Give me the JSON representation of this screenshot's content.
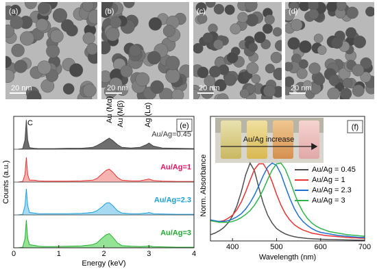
{
  "panels": [
    {
      "label": "(a)",
      "scale_bar": "20 nm"
    },
    {
      "label": "(b)",
      "scale_bar": "20 nm"
    },
    {
      "label": "(c)",
      "scale_bar": "20 nm"
    },
    {
      "label": "(d)",
      "scale_bar": "20 nm"
    }
  ],
  "chart_data": [
    {
      "type": "area",
      "panel_label": "(e)",
      "xlabel": "Energy (keV)",
      "ylabel": "Counts (a.u.)",
      "annotations": [
        "C",
        "Au (Mα)",
        "Au (Mβ)",
        "Ag (Lα)"
      ],
      "xlim": [
        0,
        4
      ],
      "xticks": [
        0,
        1,
        2,
        3,
        4
      ],
      "ylim": [
        0,
        1
      ],
      "x": [
        0.1,
        0.2,
        0.25,
        0.28,
        0.31,
        0.35,
        0.45,
        0.55,
        0.7,
        0.9,
        1.2,
        1.5,
        1.75,
        1.85,
        1.95,
        2.05,
        2.12,
        2.2,
        2.3,
        2.4,
        2.6,
        2.8,
        2.95,
        3.0,
        3.1,
        3.3,
        3.6,
        4.0
      ],
      "series": [
        {
          "name": "Au/Ag=0.45",
          "color": "#444444",
          "fill": "#6e6e6e",
          "label_color": "#333333",
          "values": [
            0,
            0.02,
            0.3,
            0.95,
            0.3,
            0.05,
            0.03,
            0.02,
            0.02,
            0.02,
            0.03,
            0.03,
            0.06,
            0.12,
            0.2,
            0.3,
            0.36,
            0.28,
            0.15,
            0.06,
            0.04,
            0.06,
            0.15,
            0.2,
            0.1,
            0.04,
            0.03,
            0.02
          ]
        },
        {
          "name": "Au/Ag=1",
          "color": "#e8312f",
          "fill": "#f6b3b0",
          "label_color": "#e0115f",
          "values": [
            0,
            0.02,
            0.25,
            0.8,
            0.25,
            0.06,
            0.06,
            0.04,
            0.03,
            0.03,
            0.03,
            0.04,
            0.06,
            0.12,
            0.25,
            0.38,
            0.42,
            0.32,
            0.15,
            0.06,
            0.04,
            0.04,
            0.08,
            0.1,
            0.05,
            0.03,
            0.02,
            0.02
          ]
        },
        {
          "name": "Au/Ag=2.3",
          "color": "#1aa0e0",
          "fill": "#a6daf3",
          "label_color": "#1aa0d8",
          "values": [
            0,
            0.02,
            0.3,
            0.85,
            0.3,
            0.08,
            0.06,
            0.04,
            0.04,
            0.04,
            0.04,
            0.05,
            0.08,
            0.14,
            0.25,
            0.38,
            0.4,
            0.3,
            0.14,
            0.06,
            0.04,
            0.04,
            0.06,
            0.08,
            0.04,
            0.03,
            0.02,
            0.02
          ]
        },
        {
          "name": "Au/Ag=3",
          "color": "#22b030",
          "fill": "#95e495",
          "label_color": "#22aa33",
          "values": [
            0,
            0.02,
            0.3,
            0.9,
            0.3,
            0.1,
            0.08,
            0.05,
            0.04,
            0.04,
            0.05,
            0.06,
            0.1,
            0.16,
            0.3,
            0.42,
            0.46,
            0.34,
            0.16,
            0.07,
            0.05,
            0.04,
            0.05,
            0.06,
            0.04,
            0.03,
            0.02,
            0.02
          ]
        }
      ]
    },
    {
      "type": "line",
      "panel_label": "(f)",
      "xlabel": "Wavelength (nm)",
      "ylabel": "Norm. Absorbance",
      "inset_text": "Au/Ag increase",
      "xlim": [
        350,
        700
      ],
      "xticks": [
        400,
        500,
        600,
        700
      ],
      "ylim": [
        0,
        1.6
      ],
      "x": [
        350,
        360,
        370,
        380,
        390,
        400,
        410,
        420,
        430,
        440,
        450,
        460,
        470,
        480,
        490,
        500,
        510,
        520,
        530,
        540,
        550,
        560,
        570,
        580,
        590,
        600,
        610,
        620,
        630,
        640,
        650,
        660,
        670,
        680,
        690,
        700
      ],
      "series": [
        {
          "name": "Au/Ag = 0.45",
          "color": "#4d4d4d",
          "values": [
            0.08,
            0.1,
            0.13,
            0.17,
            0.23,
            0.32,
            0.45,
            0.63,
            0.85,
            1.0,
            0.9,
            0.68,
            0.48,
            0.33,
            0.23,
            0.16,
            0.12,
            0.09,
            0.07,
            0.055,
            0.045,
            0.038,
            0.032,
            0.028,
            0.025,
            0.022,
            0.02,
            0.018,
            0.016,
            0.015,
            0.014,
            0.013,
            0.012,
            0.011,
            0.01,
            0.01
          ]
        },
        {
          "name": "Au/Ag = 1",
          "color": "#e8312f",
          "values": [
            0.26,
            0.25,
            0.25,
            0.26,
            0.29,
            0.33,
            0.4,
            0.5,
            0.63,
            0.78,
            0.92,
            0.99,
            0.99,
            0.9,
            0.76,
            0.6,
            0.46,
            0.35,
            0.27,
            0.21,
            0.17,
            0.14,
            0.12,
            0.1,
            0.09,
            0.08,
            0.07,
            0.065,
            0.06,
            0.055,
            0.05,
            0.045,
            0.04,
            0.04,
            0.035,
            0.035
          ]
        },
        {
          "name": "Au/Ag = 2.3",
          "color": "#1f6fd1",
          "values": [
            0.27,
            0.26,
            0.25,
            0.25,
            0.26,
            0.28,
            0.31,
            0.35,
            0.41,
            0.49,
            0.59,
            0.71,
            0.84,
            0.95,
            1.0,
            0.97,
            0.86,
            0.7,
            0.55,
            0.42,
            0.32,
            0.25,
            0.2,
            0.16,
            0.13,
            0.11,
            0.1,
            0.09,
            0.08,
            0.07,
            0.065,
            0.06,
            0.055,
            0.05,
            0.045,
            0.045
          ]
        },
        {
          "name": "Au/Ag = 3",
          "color": "#2db34a",
          "values": [
            0.26,
            0.25,
            0.24,
            0.24,
            0.24,
            0.25,
            0.27,
            0.3,
            0.34,
            0.39,
            0.46,
            0.55,
            0.66,
            0.79,
            0.91,
            0.99,
            1.0,
            0.92,
            0.78,
            0.62,
            0.48,
            0.37,
            0.29,
            0.23,
            0.19,
            0.16,
            0.14,
            0.12,
            0.11,
            0.1,
            0.09,
            0.08,
            0.075,
            0.07,
            0.065,
            0.06
          ]
        }
      ]
    }
  ]
}
